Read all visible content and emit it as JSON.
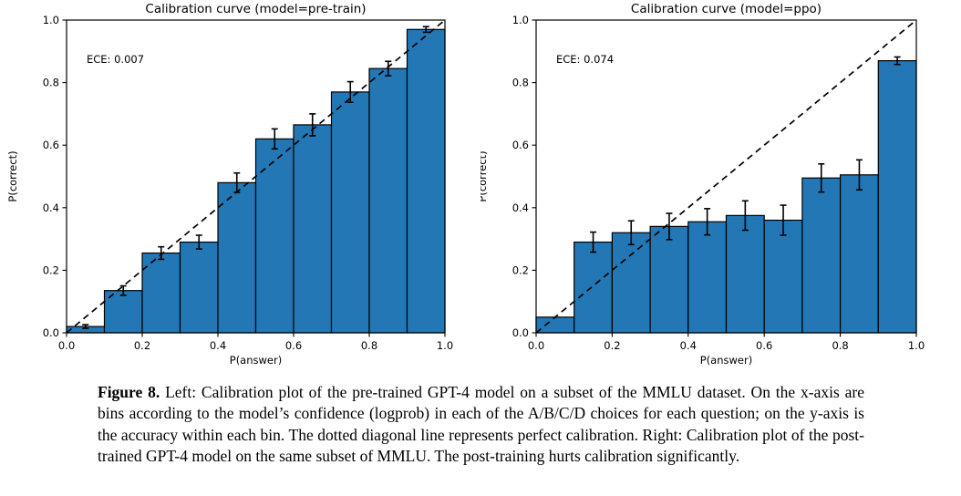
{
  "figure": {
    "caption_label": "Figure 8.",
    "caption_text": " Left: Calibration plot of the pre-trained GPT-4 model on a subset of the MMLU dataset. On the x-axis are bins according to the model’s confidence (logprob) in each of the A/B/C/D choices for each question; on the y-axis is the accuracy within each bin. The dotted diagonal line represents perfect calibration. Right: Calibration plot of the post-trained GPT-4 model on the same subset of MMLU. The post-training hurts calibration significantly."
  },
  "chart_data": [
    {
      "type": "bar",
      "title": "Calibration curve (model=pre-train)",
      "annotation": "ECE: 0.007",
      "xlabel": "P(answer)",
      "ylabel": "P(correct)",
      "xlim": [
        0.0,
        1.0
      ],
      "ylim": [
        0.0,
        1.0
      ],
      "xticks": [
        0.0,
        0.2,
        0.4,
        0.6,
        0.8,
        1.0
      ],
      "yticks": [
        0.0,
        0.2,
        0.4,
        0.6,
        0.8,
        1.0
      ],
      "bin_width": 0.1,
      "categories": [
        "0.0-0.1",
        "0.1-0.2",
        "0.2-0.3",
        "0.3-0.4",
        "0.4-0.5",
        "0.5-0.6",
        "0.6-0.7",
        "0.7-0.8",
        "0.8-0.9",
        "0.9-1.0"
      ],
      "values": [
        0.02,
        0.135,
        0.255,
        0.29,
        0.48,
        0.62,
        0.665,
        0.77,
        0.845,
        0.97
      ],
      "errors": [
        0.006,
        0.015,
        0.02,
        0.022,
        0.031,
        0.032,
        0.035,
        0.033,
        0.023,
        0.009
      ],
      "diagonal_line": "perfect-calibration",
      "grid": false,
      "bar_color": "#2377b4",
      "bar_edge_color": "#000000",
      "line_color": "#000000"
    },
    {
      "type": "bar",
      "title": "Calibration curve (model=ppo)",
      "annotation": "ECE: 0.074",
      "xlabel": "P(answer)",
      "ylabel": "P(correct)",
      "xlim": [
        0.0,
        1.0
      ],
      "ylim": [
        0.0,
        1.0
      ],
      "xticks": [
        0.0,
        0.2,
        0.4,
        0.6,
        0.8,
        1.0
      ],
      "yticks": [
        0.0,
        0.2,
        0.4,
        0.6,
        0.8,
        1.0
      ],
      "bin_width": 0.1,
      "categories": [
        "0.0-0.1",
        "0.1-0.2",
        "0.2-0.3",
        "0.3-0.4",
        "0.4-0.5",
        "0.5-0.6",
        "0.6-0.7",
        "0.7-0.8",
        "0.8-0.9",
        "0.9-1.0"
      ],
      "values": [
        0.05,
        0.29,
        0.32,
        0.34,
        0.355,
        0.375,
        0.36,
        0.495,
        0.505,
        0.87
      ],
      "errors": [
        0,
        0.032,
        0.038,
        0.042,
        0.042,
        0.047,
        0.048,
        0.045,
        0.048,
        0.012
      ],
      "diagonal_line": "perfect-calibration",
      "grid": false,
      "bar_color": "#2377b4",
      "bar_edge_color": "#000000",
      "line_color": "#000000"
    }
  ]
}
